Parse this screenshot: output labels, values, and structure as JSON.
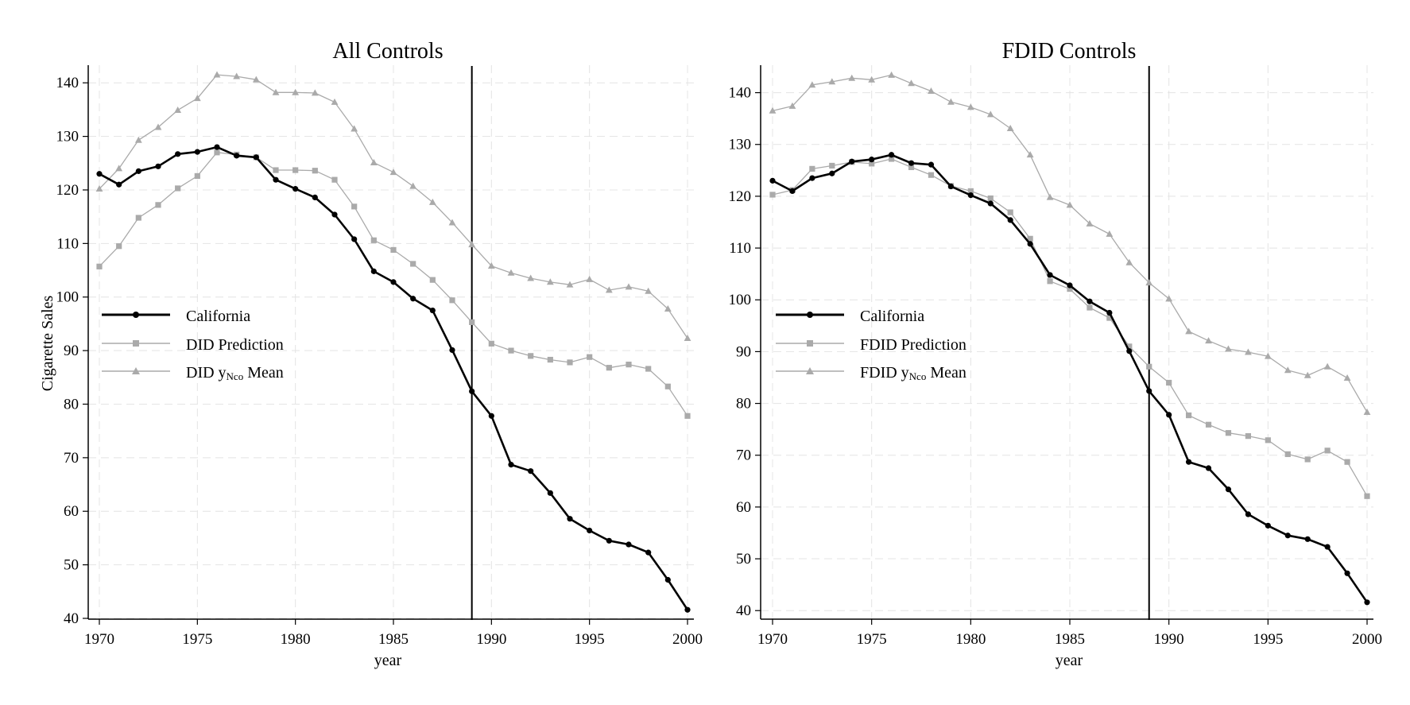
{
  "chart_data": [
    {
      "type": "line",
      "title": "All Controls",
      "xlabel": "year",
      "ylabel": "Cigarette Sales",
      "xlim": [
        1970,
        2000
      ],
      "ylim": [
        40,
        140
      ],
      "xticks": [
        "1970",
        "1975",
        "1980",
        "1985",
        "1990",
        "1995",
        "2000"
      ],
      "yticks": [
        "40",
        "50",
        "60",
        "70",
        "80",
        "90",
        "100",
        "110",
        "120",
        "130",
        "140"
      ],
      "grid": true,
      "legend_position": "middle-left",
      "treatment_line_x": 1989,
      "x": [
        1970,
        1971,
        1972,
        1973,
        1974,
        1975,
        1976,
        1977,
        1978,
        1979,
        1980,
        1981,
        1982,
        1983,
        1984,
        1985,
        1986,
        1987,
        1988,
        1989,
        1990,
        1991,
        1992,
        1993,
        1994,
        1995,
        1996,
        1997,
        1998,
        1999,
        2000
      ],
      "series": [
        {
          "name": "California",
          "marker": "circle",
          "color": "#000000",
          "values": [
            123.0,
            121.0,
            123.5,
            124.4,
            126.7,
            127.1,
            128.0,
            126.4,
            126.1,
            121.9,
            120.2,
            118.6,
            115.4,
            110.8,
            104.8,
            102.8,
            99.7,
            97.5,
            90.1,
            82.4,
            77.8,
            68.7,
            67.5,
            63.4,
            58.6,
            56.4,
            54.5,
            53.8,
            52.3,
            47.2,
            41.6
          ]
        },
        {
          "name": "DID Prediction",
          "marker": "square",
          "color": "#aaaaaa",
          "values": [
            105.7,
            109.5,
            114.8,
            117.2,
            120.3,
            122.6,
            127.0,
            126.6,
            126.1,
            123.7,
            123.7,
            123.6,
            121.9,
            116.9,
            110.6,
            108.8,
            106.2,
            103.2,
            99.4,
            95.3,
            91.3,
            90.0,
            89.0,
            88.3,
            87.8,
            88.8,
            86.8,
            87.4,
            86.6,
            83.3,
            77.8
          ]
        },
        {
          "name": "DID y_Nco Mean",
          "marker": "triangle",
          "color": "#aaaaaa",
          "values": [
            120.2,
            124.0,
            129.3,
            131.7,
            134.9,
            137.1,
            141.5,
            141.2,
            140.6,
            138.2,
            138.2,
            138.1,
            136.4,
            131.4,
            125.1,
            123.3,
            120.7,
            117.7,
            113.9,
            109.8,
            105.8,
            104.5,
            103.5,
            102.8,
            102.3,
            103.3,
            101.3,
            101.9,
            101.1,
            97.8,
            92.3
          ]
        }
      ]
    },
    {
      "type": "line",
      "title": "FDID Controls",
      "xlabel": "year",
      "ylabel": "",
      "xlim": [
        1970,
        2000
      ],
      "ylim": [
        40,
        140
      ],
      "xticks": [
        "1970",
        "1975",
        "1980",
        "1985",
        "1990",
        "1995",
        "2000"
      ],
      "yticks": [
        "40",
        "50",
        "60",
        "70",
        "80",
        "90",
        "100",
        "110",
        "120",
        "130",
        "140"
      ],
      "grid": true,
      "legend_position": "middle-left",
      "treatment_line_x": 1989,
      "x": [
        1970,
        1971,
        1972,
        1973,
        1974,
        1975,
        1976,
        1977,
        1978,
        1979,
        1980,
        1981,
        1982,
        1983,
        1984,
        1985,
        1986,
        1987,
        1988,
        1989,
        1990,
        1991,
        1992,
        1993,
        1994,
        1995,
        1996,
        1997,
        1998,
        1999,
        2000
      ],
      "series": [
        {
          "name": "California",
          "marker": "circle",
          "color": "#000000",
          "values": [
            123.0,
            121.0,
            123.5,
            124.4,
            126.7,
            127.1,
            128.0,
            126.4,
            126.1,
            121.9,
            120.2,
            118.6,
            115.4,
            110.8,
            104.8,
            102.8,
            99.7,
            97.5,
            90.1,
            82.4,
            77.8,
            68.7,
            67.5,
            63.4,
            58.6,
            56.4,
            54.5,
            53.8,
            52.3,
            47.2,
            41.6
          ]
        },
        {
          "name": "FDID Prediction",
          "marker": "square",
          "color": "#aaaaaa",
          "values": [
            120.3,
            121.2,
            125.3,
            125.9,
            126.6,
            126.3,
            127.2,
            125.6,
            124.1,
            122.0,
            121.0,
            119.6,
            116.9,
            111.8,
            103.6,
            102.1,
            98.5,
            96.5,
            91.0,
            87.1,
            84.0,
            77.7,
            75.9,
            74.3,
            73.7,
            72.9,
            70.2,
            69.2,
            70.9,
            68.7,
            62.1
          ]
        },
        {
          "name": "FDID y_Nco Mean",
          "marker": "triangle",
          "color": "#aaaaaa",
          "values": [
            136.5,
            137.4,
            141.5,
            142.1,
            142.8,
            142.5,
            143.4,
            141.8,
            140.3,
            138.2,
            137.2,
            135.8,
            133.1,
            128.0,
            119.8,
            118.3,
            114.7,
            112.7,
            107.2,
            103.3,
            100.2,
            93.9,
            92.1,
            90.5,
            89.9,
            89.1,
            86.4,
            85.4,
            87.1,
            84.9,
            78.3
          ]
        }
      ]
    }
  ],
  "legend_labels": {
    "left": {
      "california": "California",
      "prediction": "DID Prediction",
      "mean_prefix": "DID y",
      "mean_sub": "Nco",
      "mean_suffix": " Mean"
    },
    "right": {
      "california": "California",
      "prediction": "FDID Prediction",
      "mean_prefix": "FDID y",
      "mean_sub": "Nco",
      "mean_suffix": " Mean"
    }
  }
}
